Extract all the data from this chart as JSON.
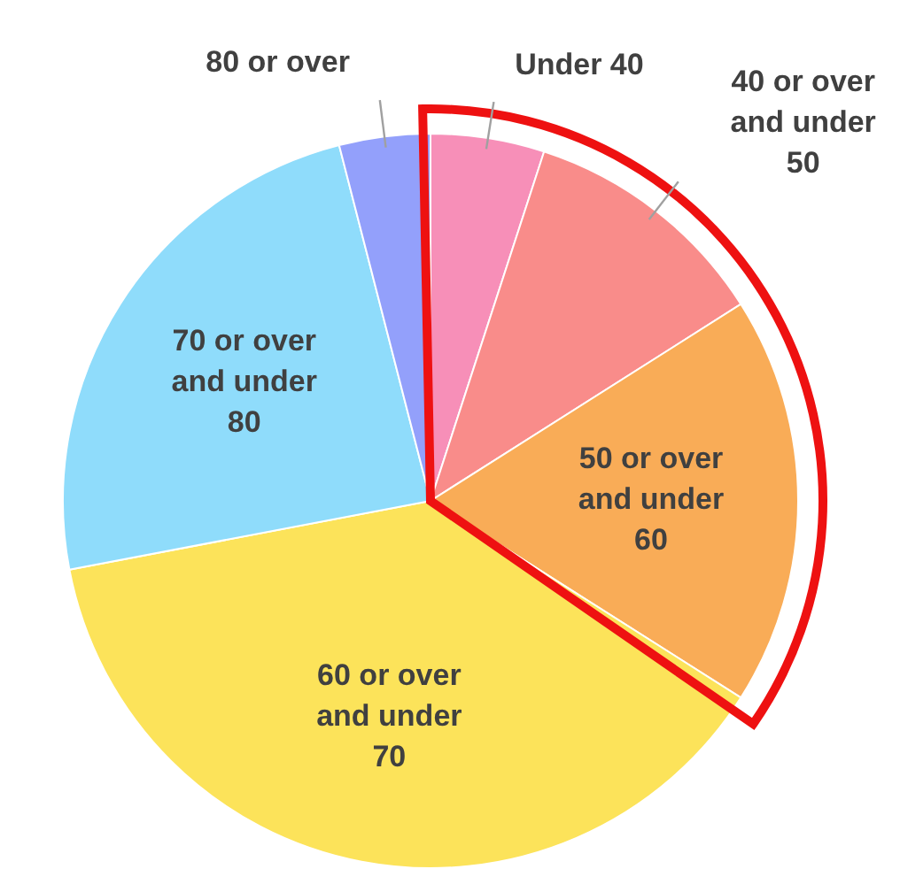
{
  "chart_data": {
    "type": "pie",
    "categories": [
      "Under 40",
      "40 or over and under 50",
      "50 or over and under 60",
      "60 or over and under 70",
      "70 or over and under 80",
      "80 or over"
    ],
    "values": [
      5,
      11,
      18,
      38,
      24,
      4
    ],
    "colors": [
      "#f78fb8",
      "#f98c8a",
      "#f9ac57",
      "#fce35a",
      "#8fdcfb",
      "#93a0fb"
    ],
    "legend": false
  }
}
